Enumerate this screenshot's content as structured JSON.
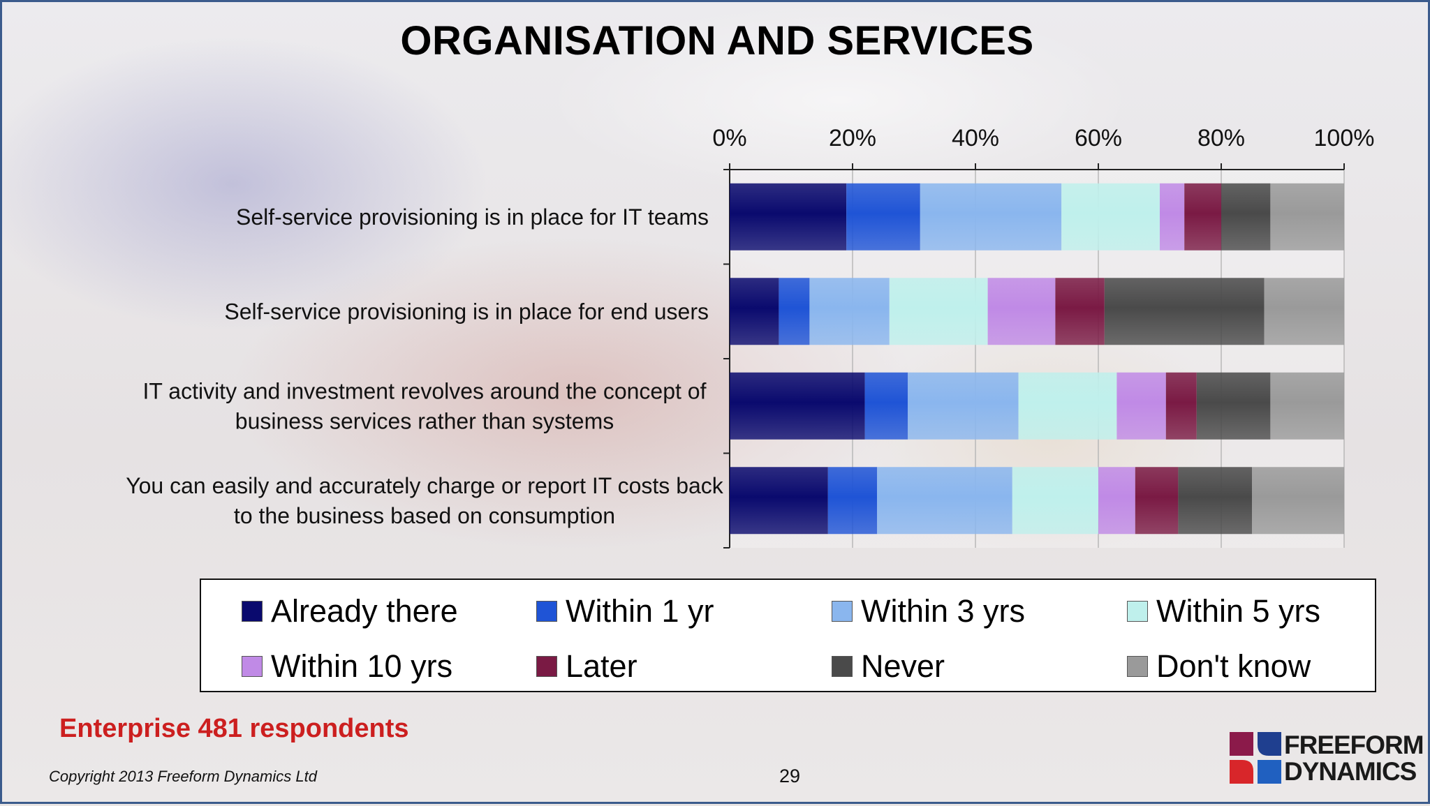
{
  "slide": {
    "title": "ORGANISATION AND SERVICES",
    "note": "Enterprise 481 respondents",
    "copyright": "Copyright 2013 Freeform Dynamics Ltd",
    "page_number": "29",
    "logo": {
      "line1": "FREEFORM",
      "line2": "DYNAMICS",
      "colors": [
        "#8b1a4a",
        "#1f3f8f",
        "#d8262a",
        "#2060c0"
      ]
    }
  },
  "chart_data": {
    "type": "bar",
    "orientation": "horizontal",
    "stacked": "percent",
    "xlim": [
      0,
      100
    ],
    "ticks": [
      "0%",
      "20%",
      "40%",
      "60%",
      "80%",
      "100%"
    ],
    "tick_values": [
      0,
      20,
      40,
      60,
      80,
      100
    ],
    "x_axis_position": "top",
    "grid": true,
    "legend_position": "bottom",
    "categories": [
      [
        "Self-service provisioning is in place for IT teams"
      ],
      [
        "Self-service provisioning is in place for end users"
      ],
      [
        "IT activity and investment revolves around the concept of",
        "business services rather than systems"
      ],
      [
        "You can easily and accurately charge or report IT costs back",
        "to the business based on consumption"
      ]
    ],
    "series": [
      {
        "name": "Already there",
        "color": "#0a0a6e",
        "values": [
          19,
          8,
          22,
          16
        ]
      },
      {
        "name": "Within 1 yr",
        "color": "#1f54d6",
        "values": [
          12,
          5,
          7,
          8
        ]
      },
      {
        "name": "Within 3 yrs",
        "color": "#8ab6ee",
        "values": [
          23,
          13,
          18,
          22
        ]
      },
      {
        "name": "Within 5 yrs",
        "color": "#bff0ec",
        "values": [
          16,
          16,
          16,
          14
        ]
      },
      {
        "name": "Within 10 yrs",
        "color": "#c08ae6",
        "values": [
          4,
          11,
          8,
          6
        ]
      },
      {
        "name": "Later",
        "color": "#7a1a44",
        "values": [
          6,
          8,
          5,
          7
        ]
      },
      {
        "name": "Never",
        "color": "#4a4a4a",
        "values": [
          8,
          26,
          12,
          12
        ]
      },
      {
        "name": "Don't know",
        "color": "#9a9a9a",
        "values": [
          12,
          13,
          12,
          15
        ]
      }
    ]
  }
}
